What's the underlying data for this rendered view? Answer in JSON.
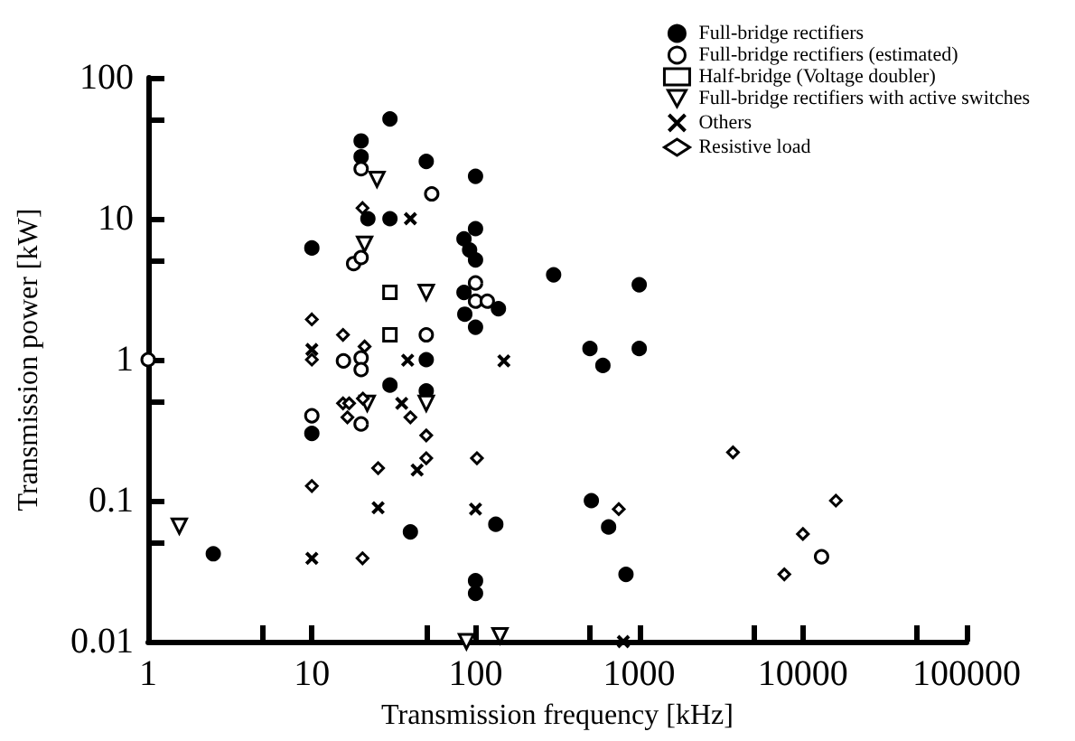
{
  "chart_data": {
    "type": "scatter",
    "xlabel": "Transmission frequency [kHz]",
    "ylabel": "Transmission power [kW]",
    "log": "xy",
    "grid": false,
    "legend": "top right",
    "xlim": [
      1,
      100000
    ],
    "ylim": [
      0.01,
      100
    ],
    "xticks": [
      1,
      {
        "value": 5,
        "label": null
      },
      10,
      {
        "value": 50,
        "label": null
      },
      100,
      {
        "value": 500,
        "label": null
      },
      1000,
      {
        "value": 5000,
        "label": null
      },
      10000,
      {
        "value": 50000,
        "label": null
      },
      100000
    ],
    "yticks": [
      0.01,
      {
        "value": 0.05,
        "label": null
      },
      0.1,
      {
        "value": 0.5,
        "label": null
      },
      1,
      {
        "value": 5,
        "label": null
      },
      10,
      {
        "value": 50,
        "label": null
      },
      100
    ],
    "series": [
      {
        "name": "Full-bridge rectifiers",
        "color": "#000000",
        "marker": "circle",
        "x": [
          30,
          20,
          20,
          22,
          30,
          10,
          50,
          100,
          100,
          85,
          92,
          100,
          300,
          1000,
          85,
          138,
          86,
          100,
          500,
          1000,
          600,
          50,
          30,
          50,
          510,
          133,
          650,
          40,
          830,
          100,
          100,
          2.5,
          10
        ],
        "values": [
          51,
          35.6,
          27.5,
          10,
          10,
          6.2,
          25.5,
          20,
          8.5,
          7.2,
          6,
          5.1,
          4,
          3.4,
          3,
          2.3,
          2.1,
          1.7,
          1.2,
          1.2,
          0.91,
          1,
          0.66,
          0.6,
          0.1,
          0.068,
          0.065,
          0.06,
          0.03,
          0.027,
          0.022,
          0.042,
          0.3
        ]
      },
      {
        "name": "Full-bridge rectifiers (estimated)",
        "color": "#ffffff",
        "marker": "circle",
        "x": [
          20,
          18,
          20,
          54,
          100,
          100,
          118,
          50,
          10,
          15.6,
          20,
          20,
          20,
          1,
          13000
        ],
        "values": [
          22.6,
          4.8,
          5.3,
          15,
          3.5,
          2.6,
          2.6,
          1.5,
          0.4,
          0.98,
          1.03,
          0.85,
          0.35,
          1,
          0.04
        ]
      },
      {
        "name": "Half-bridge (Voltage doubler)",
        "color": "#ffffff",
        "marker": "square",
        "x": [
          30,
          30
        ],
        "values": [
          3,
          1.5
        ]
      },
      {
        "name": "Full-bridge rectifiers with active switches",
        "color": "#ffffff",
        "marker": "triangle",
        "x": [
          25,
          21,
          50,
          21.8,
          1.55,
          50,
          141,
          88
        ],
        "values": [
          19,
          6.6,
          3,
          0.49,
          0.066,
          0.49,
          0.011,
          0.01
        ]
      },
      {
        "name": "Others",
        "color": "#000000",
        "marker": "cross",
        "x": [
          40,
          10,
          38.5,
          149,
          35.4,
          44,
          25.4,
          100,
          10,
          800
        ],
        "values": [
          10,
          1.18,
          0.99,
          0.98,
          0.49,
          0.165,
          0.089,
          0.087,
          0.039,
          0.01
        ]
      },
      {
        "name": "Resistive load",
        "color": "#ffffff",
        "marker": "diamond",
        "x": [
          20.4,
          10,
          15.5,
          10,
          21,
          15.5,
          16.9,
          16.5,
          20.5,
          10,
          20.4,
          25.4,
          40,
          50,
          50,
          102,
          3740,
          750,
          15900,
          10000,
          7700
        ],
        "values": [
          11.9,
          1.93,
          1.5,
          1,
          1.24,
          0.49,
          0.49,
          0.39,
          0.53,
          0.127,
          0.039,
          0.17,
          0.39,
          0.29,
          0.2,
          0.2,
          0.22,
          0.087,
          0.1,
          0.058,
          0.03
        ]
      }
    ]
  }
}
